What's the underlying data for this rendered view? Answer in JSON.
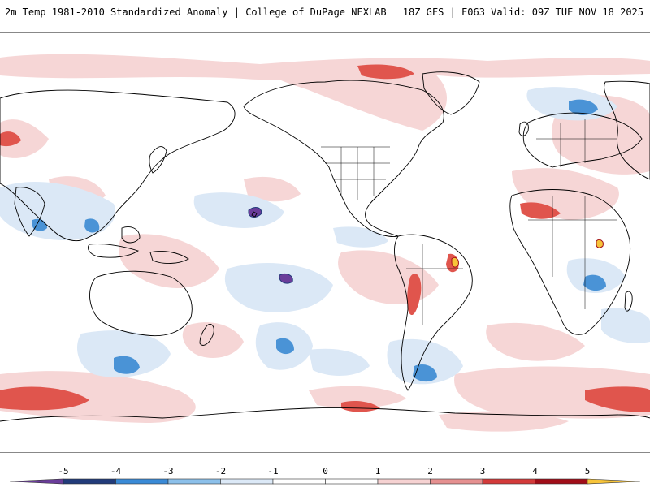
{
  "header": {
    "title_left": "2m Temp 1981-2010 Standardized Anomaly | College of DuPage NEXLAB",
    "title_right": "18Z GFS | F063 Valid: 09Z TUE NOV 18 2025"
  },
  "colorbar": {
    "tick_labels": [
      "-5",
      "-4",
      "-3",
      "-2",
      "-1",
      "0",
      "1",
      "2",
      "3",
      "4",
      "5"
    ],
    "colors": [
      "#6a3d9a",
      "#223b7a",
      "#3a8ad6",
      "#8cc0ea",
      "#dce9f7",
      "#ffffff",
      "#ffffff",
      "#f6d2d2",
      "#e59090",
      "#d33a3a",
      "#a00d18",
      "#f7c43a"
    ]
  },
  "map": {
    "background": "#ffffff",
    "warm_color": "#f6d6d6",
    "warm_strong_color": "#e0554d",
    "cold_color": "#dbe8f6",
    "cold_strong_color": "#4a93d6",
    "coast_color": "#000000"
  }
}
